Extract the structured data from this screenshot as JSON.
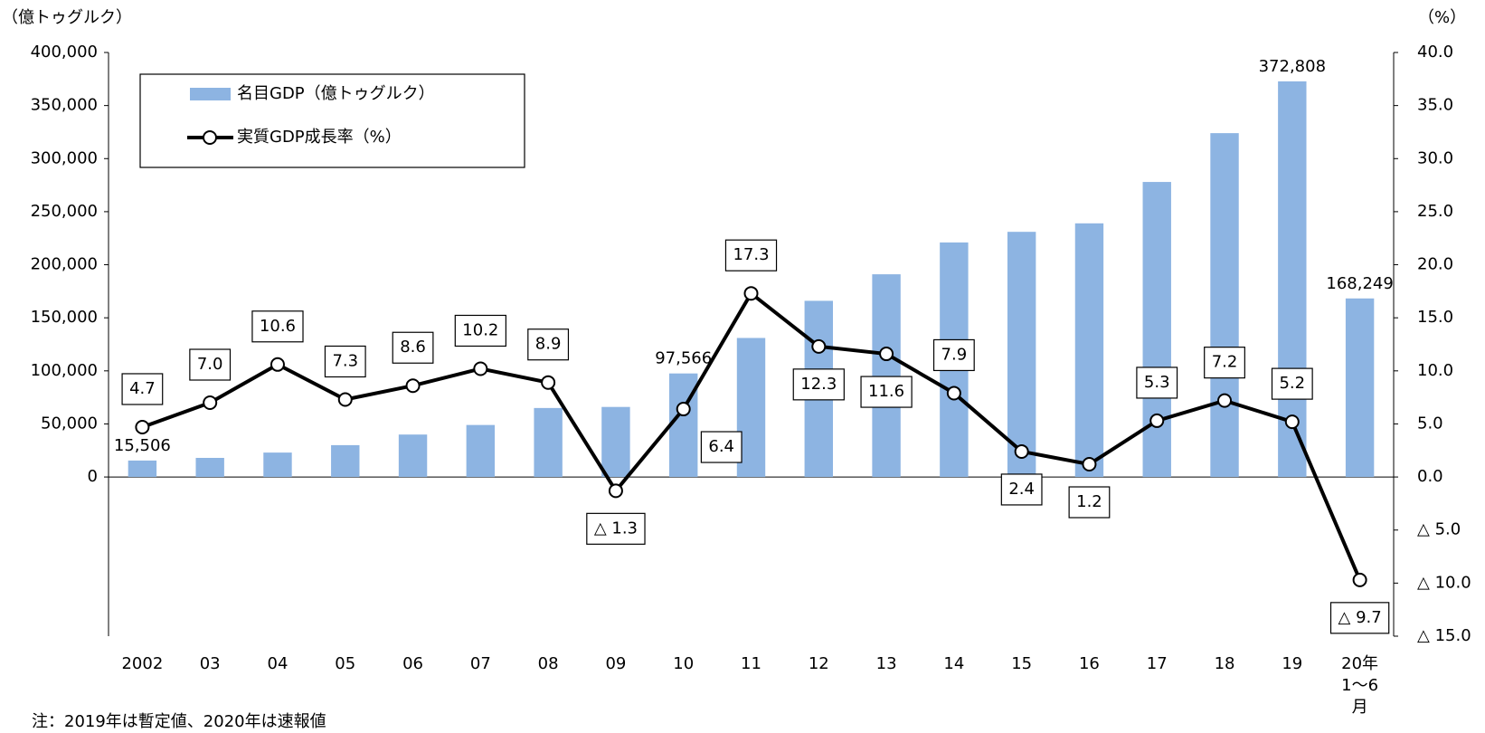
{
  "chart_data": {
    "type": "bar",
    "y_label": "（億トゥグルク）",
    "y2_label": "（%）",
    "note": "注：2019年は暫定値、2020年は速報値",
    "categories": [
      "2002",
      "03",
      "04",
      "05",
      "06",
      "07",
      "08",
      "09",
      "10",
      "11",
      "12",
      "13",
      "14",
      "15",
      "16",
      "17",
      "18",
      "19",
      "20年1～6月"
    ],
    "series": [
      {
        "name": "名目GDP（億トゥグルク）",
        "type": "bar",
        "color": "#8db4e2",
        "values": [
          15506,
          18000,
          23000,
          30000,
          40000,
          49000,
          65000,
          66000,
          97566,
          131000,
          166000,
          191000,
          221000,
          231000,
          239000,
          278000,
          324000,
          372808,
          168249
        ],
        "value_labels": [
          "15,506",
          null,
          null,
          null,
          null,
          null,
          null,
          null,
          "97,566",
          null,
          null,
          null,
          null,
          null,
          null,
          null,
          null,
          "372,808",
          "168,249"
        ]
      },
      {
        "name": "実質GDP成長率（%）",
        "type": "line",
        "color": "#000000",
        "axis": "y2",
        "values": [
          4.7,
          7.0,
          10.6,
          7.3,
          8.6,
          10.2,
          8.9,
          -1.3,
          6.4,
          17.3,
          12.3,
          11.6,
          7.9,
          2.4,
          1.2,
          5.3,
          7.2,
          5.2,
          -9.7
        ],
        "value_labels": [
          "4.7",
          "7.0",
          "10.6",
          "7.3",
          "8.6",
          "10.2",
          "8.9",
          "△ 1.3",
          "6.4",
          "17.3",
          "12.3",
          "11.6",
          "7.9",
          "2.4",
          "1.2",
          "5.3",
          "7.2",
          "5.2",
          "△ 9.7"
        ]
      }
    ],
    "ylim": [
      -150000,
      400000
    ],
    "yticks": [
      0,
      {
        "value": 50000,
        "label": "50,000"
      },
      {
        "value": 100000,
        "label": "100,000"
      },
      {
        "value": 150000,
        "label": "150,000"
      },
      {
        "value": 200000,
        "label": "200,000"
      },
      {
        "value": 250000,
        "label": "250,000"
      },
      {
        "value": 300000,
        "label": "300,000"
      },
      {
        "value": 350000,
        "label": "350,000"
      },
      {
        "value": 400000,
        "label": "400,000"
      }
    ],
    "y2lim": [
      -15,
      40
    ],
    "y2ticks": [
      {
        "value": -15,
        "label": "△ 15.0"
      },
      {
        "value": -10,
        "label": "△ 10.0"
      },
      {
        "value": -5,
        "label": "△ 5.0"
      },
      {
        "value": 0,
        "label": "0.0"
      },
      {
        "value": 5,
        "label": "5.0"
      },
      {
        "value": 10,
        "label": "10.0"
      },
      {
        "value": 15,
        "label": "15.0"
      },
      {
        "value": 20,
        "label": "20.0"
      },
      {
        "value": 25,
        "label": "25.0"
      },
      {
        "value": 30,
        "label": "30.0"
      },
      {
        "value": 35,
        "label": "35.0"
      },
      {
        "value": 40,
        "label": "40.0"
      }
    ]
  }
}
